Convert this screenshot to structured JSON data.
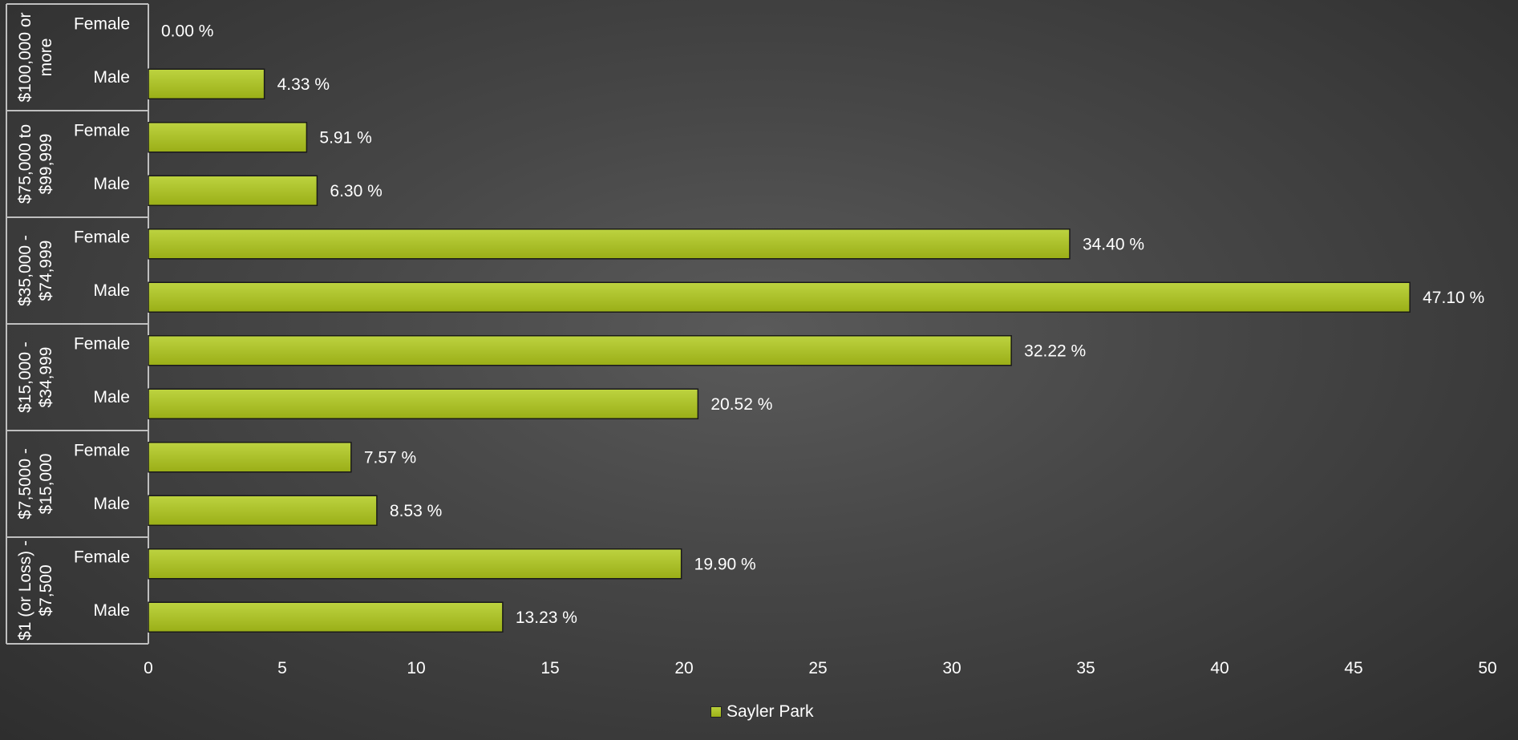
{
  "chart_data": {
    "type": "bar",
    "orientation": "horizontal",
    "groups": [
      {
        "name": "$100,000 or more",
        "label_lines": [
          "$100,000 or",
          "more"
        ],
        "categories": [
          "Female",
          "Male"
        ],
        "values": [
          0.0,
          4.33
        ],
        "data_labels": [
          "0.00 %",
          "4.33 %"
        ]
      },
      {
        "name": "$75,000 to $99,999",
        "label_lines": [
          "$75,000 to",
          "$99,999"
        ],
        "categories": [
          "Female",
          "Male"
        ],
        "values": [
          5.91,
          6.3
        ],
        "data_labels": [
          "5.91 %",
          "6.30 %"
        ]
      },
      {
        "name": "$35,000 - $74,999",
        "label_lines": [
          "$35,000 -",
          "$74,999"
        ],
        "categories": [
          "Female",
          "Male"
        ],
        "values": [
          34.4,
          47.1
        ],
        "data_labels": [
          "34.40 %",
          "47.10 %"
        ]
      },
      {
        "name": "$15,000 - $34,999",
        "label_lines": [
          "$15,000 -",
          "$34,999"
        ],
        "categories": [
          "Female",
          "Male"
        ],
        "values": [
          32.22,
          20.52
        ],
        "data_labels": [
          "32.22 %",
          "20.52 %"
        ]
      },
      {
        "name": "$7,5000 - $15,000",
        "label_lines": [
          "$7,5000 -",
          "$15,000"
        ],
        "categories": [
          "Female",
          "Male"
        ],
        "values": [
          7.57,
          8.53
        ],
        "data_labels": [
          "7.57 %",
          "8.53 %"
        ]
      },
      {
        "name": "$1 (or Loss) - $7,500",
        "label_lines": [
          "$1 (or Loss) -",
          "$7,500"
        ],
        "categories": [
          "Female",
          "Male"
        ],
        "values": [
          19.9,
          13.23
        ],
        "data_labels": [
          "19.90 %",
          "13.23 %"
        ]
      }
    ],
    "series": [
      {
        "name": "Sayler Park"
      }
    ],
    "xlim": [
      0,
      50
    ],
    "xticks": [
      "0",
      "5",
      "10",
      "15",
      "20",
      "25",
      "30",
      "35",
      "40",
      "45",
      "50"
    ],
    "grid": false,
    "legend_position": "bottom",
    "colors": {
      "bar": "#a8bd22",
      "bar_border": "#1a1a1a",
      "text": "#ffffff",
      "axis": "#bfbfbf"
    }
  }
}
